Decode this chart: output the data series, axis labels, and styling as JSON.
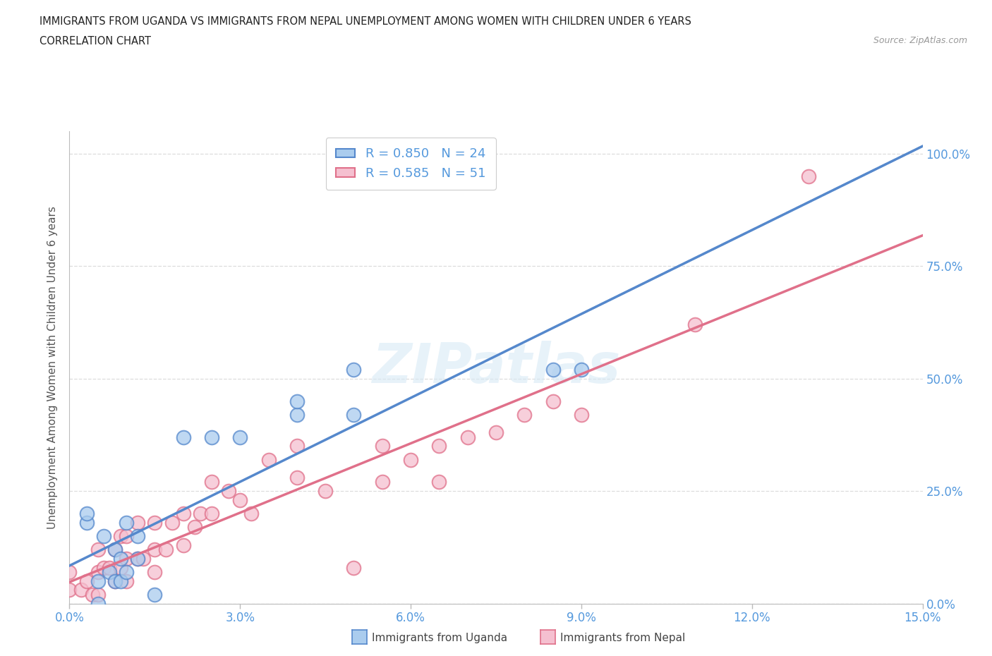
{
  "title_line1": "IMMIGRANTS FROM UGANDA VS IMMIGRANTS FROM NEPAL UNEMPLOYMENT AMONG WOMEN WITH CHILDREN UNDER 6 YEARS",
  "title_line2": "CORRELATION CHART",
  "source": "Source: ZipAtlas.com",
  "ylabel": "Unemployment Among Women with Children Under 6 years",
  "xlim": [
    0.0,
    0.15
  ],
  "ylim": [
    0.0,
    1.05
  ],
  "yticks": [
    0.0,
    0.25,
    0.5,
    0.75,
    1.0
  ],
  "xticks": [
    0.0,
    0.03,
    0.06,
    0.09,
    0.12,
    0.15
  ],
  "uganda_R": 0.85,
  "uganda_N": 24,
  "nepal_R": 0.585,
  "nepal_N": 51,
  "uganda_fill_color": "#aaccee",
  "uganda_edge_color": "#5588cc",
  "nepal_fill_color": "#f5c0d0",
  "nepal_edge_color": "#e0708a",
  "uganda_line_color": "#5588cc",
  "nepal_line_color": "#e0708a",
  "right_tick_color": "#5599dd",
  "bottom_tick_color": "#5599dd",
  "uganda_scatter_x": [
    0.003,
    0.003,
    0.005,
    0.005,
    0.006,
    0.007,
    0.008,
    0.008,
    0.009,
    0.009,
    0.01,
    0.01,
    0.012,
    0.012,
    0.015,
    0.02,
    0.025,
    0.03,
    0.04,
    0.04,
    0.05,
    0.05,
    0.085,
    0.09
  ],
  "uganda_scatter_y": [
    0.18,
    0.2,
    0.0,
    0.05,
    0.15,
    0.07,
    0.05,
    0.12,
    0.05,
    0.1,
    0.07,
    0.18,
    0.1,
    0.15,
    0.02,
    0.37,
    0.37,
    0.37,
    0.42,
    0.45,
    0.42,
    0.52,
    0.52,
    0.52
  ],
  "nepal_scatter_x": [
    0.0,
    0.0,
    0.002,
    0.003,
    0.004,
    0.005,
    0.005,
    0.005,
    0.006,
    0.007,
    0.008,
    0.008,
    0.009,
    0.009,
    0.01,
    0.01,
    0.01,
    0.012,
    0.012,
    0.013,
    0.015,
    0.015,
    0.015,
    0.017,
    0.018,
    0.02,
    0.02,
    0.022,
    0.023,
    0.025,
    0.025,
    0.028,
    0.03,
    0.032,
    0.035,
    0.04,
    0.04,
    0.045,
    0.05,
    0.055,
    0.055,
    0.06,
    0.065,
    0.065,
    0.07,
    0.075,
    0.08,
    0.085,
    0.09,
    0.11,
    0.13
  ],
  "nepal_scatter_y": [
    0.03,
    0.07,
    0.03,
    0.05,
    0.02,
    0.02,
    0.07,
    0.12,
    0.08,
    0.08,
    0.05,
    0.12,
    0.08,
    0.15,
    0.05,
    0.1,
    0.15,
    0.1,
    0.18,
    0.1,
    0.07,
    0.12,
    0.18,
    0.12,
    0.18,
    0.13,
    0.2,
    0.17,
    0.2,
    0.2,
    0.27,
    0.25,
    0.23,
    0.2,
    0.32,
    0.28,
    0.35,
    0.25,
    0.08,
    0.27,
    0.35,
    0.32,
    0.27,
    0.35,
    0.37,
    0.38,
    0.42,
    0.45,
    0.42,
    0.62,
    0.95
  ],
  "grid_color": "#dddddd",
  "background_color": "#ffffff",
  "uganda_line_intercept": 0.02,
  "uganda_line_slope": 5.5,
  "nepal_line_intercept": 0.02,
  "nepal_line_slope": 4.5
}
